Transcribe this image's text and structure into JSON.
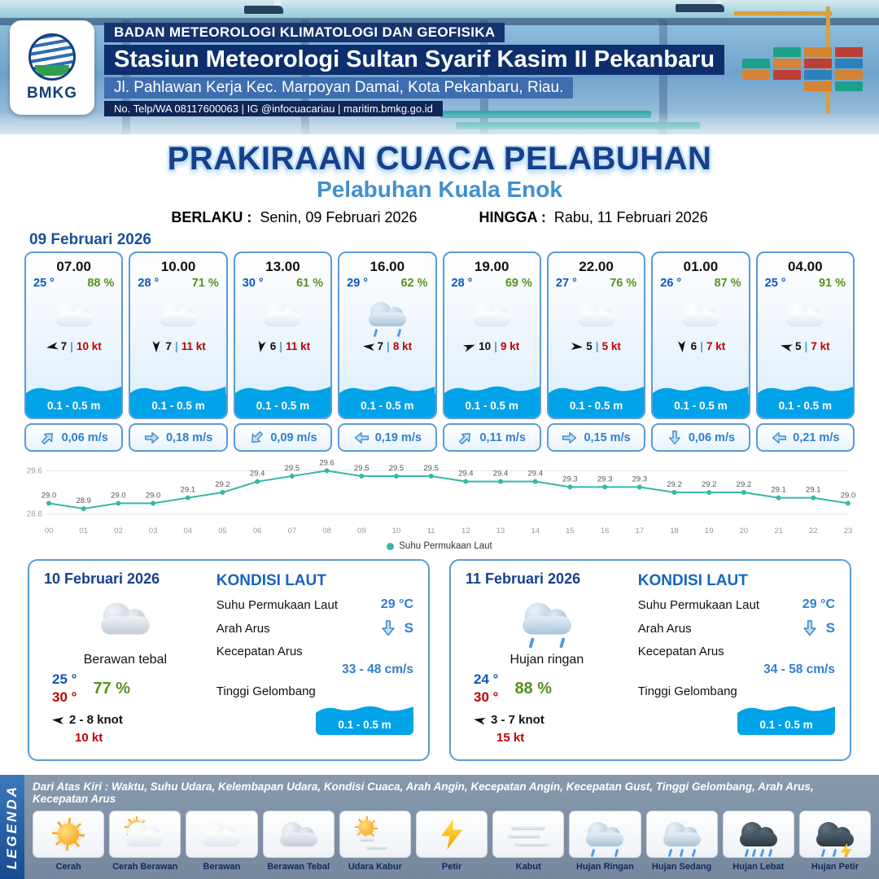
{
  "header": {
    "logo_text": "BMKG",
    "line1": "BADAN METEOROLOGI KLIMATOLOGI DAN GEOFISIKA",
    "line2": "Stasiun Meteorologi Sultan Syarif Kasim II Pekanbaru",
    "line3": "Jl. Pahlawan Kerja Kec. Marpoyan Damai, Kota Pekanbaru, Riau.",
    "line4": "No. Telp/WA 08117600063 | IG @infocuacariau | maritim.bmkg.go.id"
  },
  "title": {
    "main": "PRAKIRAAN CUACA PELABUHAN",
    "subtitle": "Pelabuhan Kuala Enok",
    "berlaku_label": "BERLAKU :",
    "berlaku_value": "Senin, 09 Februari 2026",
    "hingga_label": "HINGGA :",
    "hingga_value": "Rabu, 11 Februari 2026"
  },
  "forecast_date": "09 Februari 2026",
  "labels": {
    "wind_separator": "|"
  },
  "forecast_cards": [
    {
      "time": "07.00",
      "temp": "25 °",
      "humidity": "88 %",
      "icon": "cloud",
      "wind_deg": 170,
      "wind_speed": "7",
      "gust": "10 kt",
      "wave": "0.1 - 0.5 m",
      "current_deg": -45,
      "current": "0,06 m/s"
    },
    {
      "time": "10.00",
      "temp": "28 °",
      "humidity": "71 %",
      "icon": "cloud",
      "wind_deg": 90,
      "wind_speed": "7",
      "gust": "11 kt",
      "wave": "0.1 - 0.5 m",
      "current_deg": 0,
      "current": "0,18 m/s"
    },
    {
      "time": "13.00",
      "temp": "30 °",
      "humidity": "61 %",
      "icon": "cloud",
      "wind_deg": 100,
      "wind_speed": "6",
      "gust": "11 kt",
      "wave": "0.1 - 0.5 m",
      "current_deg": 135,
      "current": "0,09 m/s"
    },
    {
      "time": "16.00",
      "temp": "29 °",
      "humidity": "62 %",
      "icon": "rain-light",
      "wind_deg": 185,
      "wind_speed": "7",
      "gust": "8 kt",
      "wave": "0.1 - 0.5 m",
      "current_deg": 180,
      "current": "0,19 m/s"
    },
    {
      "time": "19.00",
      "temp": "28 °",
      "humidity": "69 %",
      "icon": "cloud",
      "wind_deg": -20,
      "wind_speed": "10",
      "gust": "9 kt",
      "wave": "0.1 - 0.5 m",
      "current_deg": -45,
      "current": "0,11 m/s"
    },
    {
      "time": "22.00",
      "temp": "27 °",
      "humidity": "76 %",
      "icon": "cloud",
      "wind_deg": 5,
      "wind_speed": "5",
      "gust": "5 kt",
      "wave": "0.1 - 0.5 m",
      "current_deg": 0,
      "current": "0,15 m/s"
    },
    {
      "time": "01.00",
      "temp": "26 °",
      "humidity": "87 %",
      "icon": "cloud",
      "wind_deg": 85,
      "wind_speed": "6",
      "gust": "7 kt",
      "wave": "0.1 - 0.5 m",
      "current_deg": 90,
      "current": "0,06 m/s"
    },
    {
      "time": "04.00",
      "temp": "25 °",
      "humidity": "91 %",
      "icon": "cloud",
      "wind_deg": 195,
      "wind_speed": "5",
      "gust": "7 kt",
      "wave": "0.1 - 0.5 m",
      "current_deg": 180,
      "current": "0,21 m/s"
    }
  ],
  "chart_data": {
    "type": "line",
    "x": [
      "00",
      "01",
      "02",
      "03",
      "04",
      "05",
      "06",
      "07",
      "08",
      "09",
      "10",
      "11",
      "12",
      "13",
      "14",
      "15",
      "16",
      "17",
      "18",
      "19",
      "20",
      "21",
      "22",
      "23"
    ],
    "series": [
      {
        "name": "Suhu Permukaan Laut",
        "values": [
          29.0,
          28.9,
          29.0,
          29.0,
          29.1,
          29.2,
          29.4,
          29.5,
          29.6,
          29.5,
          29.5,
          29.5,
          29.4,
          29.4,
          29.4,
          29.3,
          29.3,
          29.3,
          29.2,
          29.2,
          29.2,
          29.1,
          29.1,
          29.0
        ]
      }
    ],
    "ylim": [
      28.8,
      29.6
    ],
    "yticks": [
      28.8,
      29.6
    ],
    "line_color": "#35b8a5",
    "legend": "Suhu Permukaan Laut",
    "legend_position": "bottom",
    "grid": false,
    "title": "",
    "xlabel": "",
    "ylabel": ""
  },
  "daily_cards": [
    {
      "date": "10 Februari 2026",
      "icon": "cloud-thick",
      "condition": "Berawan tebal",
      "temp_min": "25 °",
      "temp_max": "30 °",
      "humidity": "77 %",
      "wind_deg": 185,
      "wind_range": "2 - 8 knot",
      "gust": "10 kt",
      "kondisi_laut_title": "KONDISI LAUT",
      "sst_label": "Suhu Permukaan Laut",
      "sst_value": "29 °C",
      "arus_dir_label": "Arah Arus",
      "arus_dir_deg": 90,
      "arus_dir_value": "S",
      "arus_speed_label": "Kecepatan Arus",
      "arus_speed_value": "33 - 48 cm/s",
      "wave_label": "Tinggi Gelombang",
      "wave_value": "0.1 - 0.5 m"
    },
    {
      "date": "11 Februari 2026",
      "icon": "rain-light",
      "condition": "Hujan ringan",
      "temp_min": "24 °",
      "temp_max": "30 °",
      "humidity": "88 %",
      "wind_deg": 190,
      "wind_range": "3 - 7 knot",
      "gust": "15 kt",
      "kondisi_laut_title": "KONDISI LAUT",
      "sst_label": "Suhu Permukaan Laut",
      "sst_value": "29 °C",
      "arus_dir_label": "Arah Arus",
      "arus_dir_deg": 90,
      "arus_dir_value": "S",
      "arus_speed_label": "Kecepatan Arus",
      "arus_speed_value": "34 - 58 cm/s",
      "wave_label": "Tinggi Gelombang",
      "wave_value": "0.1 - 0.5 m"
    }
  ],
  "legend": {
    "vertical_label": "LEGENDA",
    "description": "Dari Atas Kiri : Waktu, Suhu Udara, Kelembapan Udara, Kondisi Cuaca, Arah Angin, Kecepatan Angin, Kecepatan Gust, Tinggi Gelombang, Arah Arus, Kecepatan Arus",
    "items": [
      {
        "label": "Cerah",
        "icon": "sun"
      },
      {
        "label": "Cerah Berawan",
        "icon": "sun-cloud"
      },
      {
        "label": "Berawan",
        "icon": "cloud"
      },
      {
        "label": "Berawan Tebal",
        "icon": "cloud-thick"
      },
      {
        "label": "Udara Kabur",
        "icon": "haze"
      },
      {
        "label": "Petir",
        "icon": "bolt"
      },
      {
        "label": "Kabut",
        "icon": "fog"
      },
      {
        "label": "Hujan Ringan",
        "icon": "rain-light"
      },
      {
        "label": "Hujan Sedang",
        "icon": "rain-med"
      },
      {
        "label": "Hujan Lebat",
        "icon": "rain-heavy"
      },
      {
        "label": "Hujan Petir",
        "icon": "rain-storm"
      }
    ]
  },
  "colors": {
    "accent_blue": "#1b4f9c",
    "card_border": "#5b9bd5",
    "temp_blue": "#0a57c2",
    "humidity_green": "#56911c",
    "gust_red": "#c00000",
    "wave_blue": "#00a3e8",
    "chart_teal": "#35b8a5",
    "title_navy": "#173f8c",
    "subtitle_blue": "#4190cf"
  }
}
